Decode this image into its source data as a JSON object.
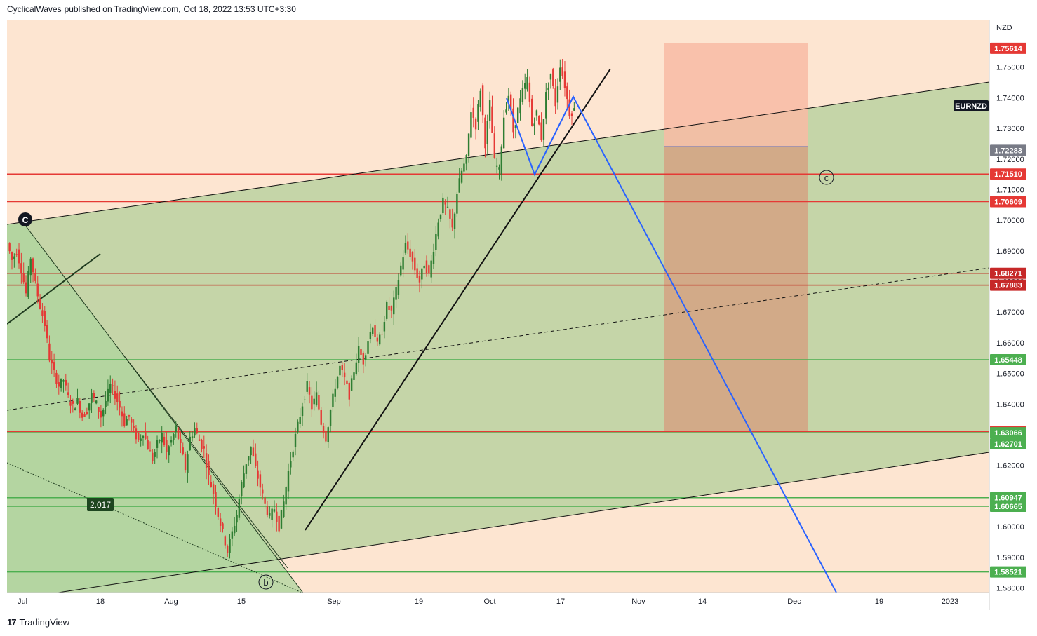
{
  "header": {
    "author": "CyclicalWaves",
    "published_on": "published on TradingView.com,",
    "timestamp": "Oct 18, 2022 13:53 UTC+3:30"
  },
  "footer": {
    "logo_text": "TradingView",
    "logo_glyph": "17"
  },
  "colors": {
    "background": "#fde5d1",
    "channel_fill": "#c5d5a8",
    "fib_fill": "#b5d8a4",
    "short_box": "#f8bba4",
    "red_level": "#e53935",
    "green_level": "#4caf50",
    "blue_path": "#2962ff",
    "candle_up": "#2e7d32",
    "candle_down": "#e53935"
  },
  "chart_data": {
    "type": "candlestick",
    "symbol": "EURNZD",
    "currency_label": "NZD",
    "x_ticks": [
      "Jul",
      "18",
      "Aug",
      "15",
      "Sep",
      "19",
      "Oct",
      "17",
      "Nov",
      "14",
      "Dec",
      "19",
      "2023"
    ],
    "y_ticks": [
      "1.75000",
      "1.74000",
      "1.73000",
      "1.72000",
      "1.71000",
      "1.70000",
      "1.69000",
      "1.68000",
      "1.67000",
      "1.66000",
      "1.65000",
      "1.64000",
      "1.63000",
      "1.62000",
      "1.61000",
      "1.60000",
      "1.59000",
      "1.58000"
    ],
    "ylim": [
      1.5785,
      1.7655
    ],
    "levels": [
      {
        "label": "1.75614",
        "value": 1.75614,
        "color": "red",
        "line": false
      },
      {
        "label": "1.72283",
        "value": 1.72283,
        "color": "gray",
        "line": false
      },
      {
        "label": "1.71510",
        "value": 1.7151,
        "color": "red",
        "line": true
      },
      {
        "label": "1.70609",
        "value": 1.70609,
        "color": "red",
        "line": true
      },
      {
        "label": "1.68271",
        "value": 1.68271,
        "color": "darkred",
        "line": true
      },
      {
        "label": "1.67883",
        "value": 1.67883,
        "color": "darkred",
        "line": true
      },
      {
        "label": "1.65448",
        "value": 1.65448,
        "color": "green",
        "line": true
      },
      {
        "label": "1.63105",
        "value": 1.63105,
        "color": "red",
        "line": true
      },
      {
        "label": "1.63066",
        "value": 1.63066,
        "color": "green",
        "line": true
      },
      {
        "label": "1.62701",
        "value": 1.62701,
        "color": "green",
        "line": false
      },
      {
        "label": "1.60947",
        "value": 1.60947,
        "color": "green",
        "line": true
      },
      {
        "label": "1.60665",
        "value": 1.60665,
        "color": "green",
        "line": true
      },
      {
        "label": "1.58521",
        "value": 1.58521,
        "color": "green",
        "line": true
      }
    ],
    "annotations": {
      "wave_c_top": "C",
      "wave_b": "b",
      "wave_c_target": "c",
      "fib_label": "2.017"
    },
    "price_path_daily_close": [
      1.6925,
      1.687,
      1.69,
      1.684,
      1.676,
      1.688,
      1.679,
      1.672,
      1.666,
      1.655,
      1.65,
      1.646,
      1.648,
      1.642,
      1.639,
      1.641,
      1.636,
      1.638,
      1.643,
      1.64,
      1.636,
      1.641,
      1.646,
      1.643,
      1.639,
      1.634,
      1.636,
      1.631,
      1.628,
      1.631,
      1.626,
      1.622,
      1.627,
      1.63,
      1.624,
      1.628,
      1.632,
      1.626,
      1.619,
      1.629,
      1.632,
      1.628,
      1.625,
      1.616,
      1.611,
      1.604,
      1.598,
      1.592,
      1.598,
      1.604,
      1.614,
      1.621,
      1.626,
      1.619,
      1.613,
      1.607,
      1.603,
      1.606,
      1.6,
      1.608,
      1.618,
      1.626,
      1.633,
      1.64,
      1.646,
      1.639,
      1.643,
      1.634,
      1.629,
      1.638,
      1.646,
      1.652,
      1.648,
      1.643,
      1.651,
      1.658,
      1.654,
      1.661,
      1.666,
      1.659,
      1.664,
      1.672,
      1.67,
      1.677,
      1.685,
      1.692,
      1.689,
      1.684,
      1.68,
      1.686,
      1.682,
      1.691,
      1.7,
      1.706,
      1.703,
      1.697,
      1.709,
      1.716,
      1.72,
      1.736,
      1.731,
      1.743,
      1.725,
      1.738,
      1.719,
      1.716,
      1.734,
      1.741,
      1.729,
      1.736,
      1.742,
      1.746,
      1.731,
      1.735,
      1.727,
      1.741,
      1.748,
      1.738,
      1.751,
      1.744,
      1.735,
      1.736
    ]
  }
}
